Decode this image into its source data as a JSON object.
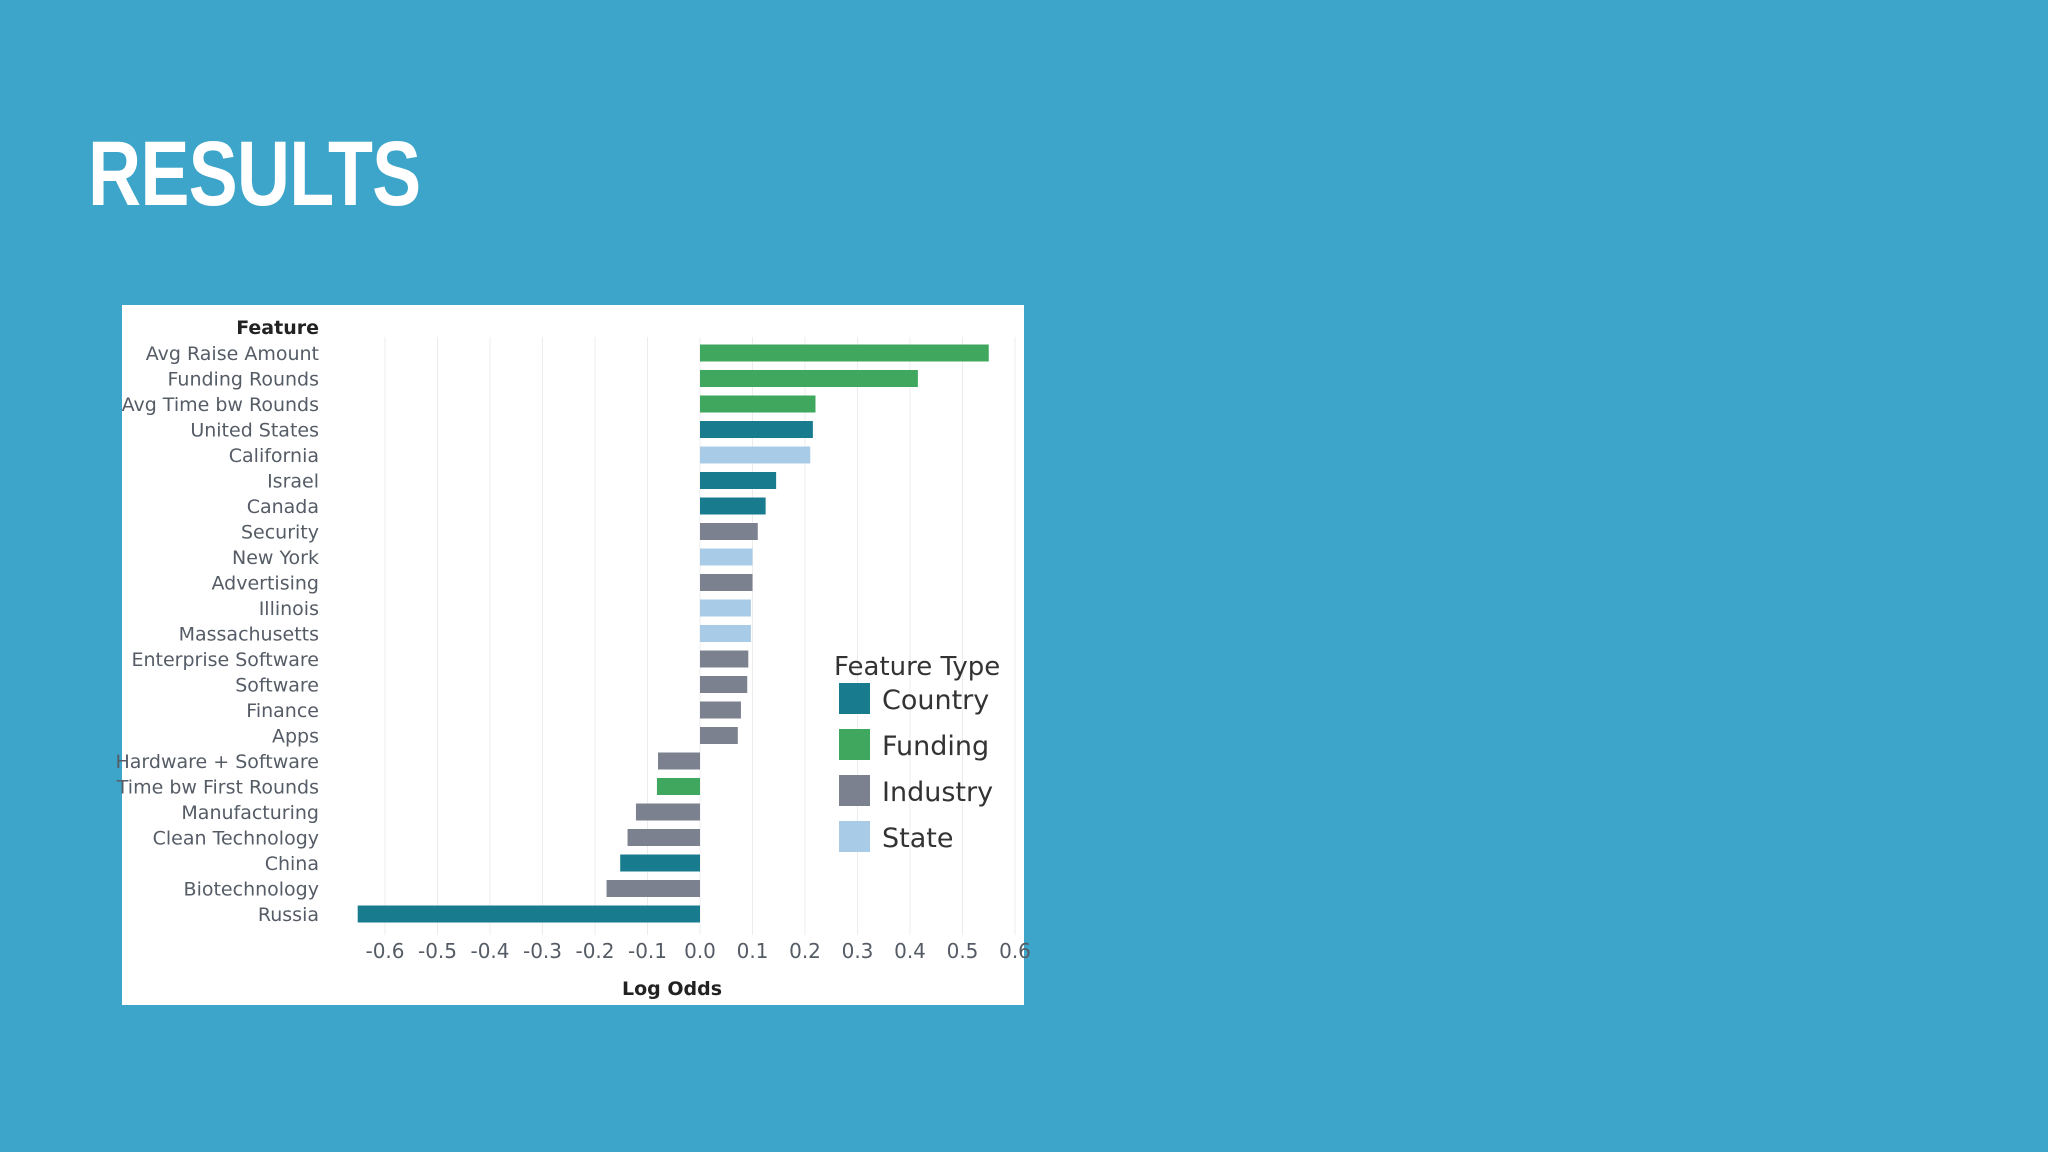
{
  "slide": {
    "title": "RESULTS"
  },
  "chart_data": {
    "type": "bar",
    "orientation": "horizontal",
    "row_header": "Feature",
    "xlabel": "Log Odds",
    "xlim": [
      -0.65,
      0.6
    ],
    "xticks": [
      -0.6,
      -0.5,
      -0.4,
      -0.3,
      -0.2,
      -0.1,
      0.0,
      0.1,
      0.2,
      0.3,
      0.4,
      0.5,
      0.6
    ],
    "xtick_labels": [
      "-0.6",
      "-0.5",
      "-0.4",
      "-0.3",
      "-0.2",
      "-0.1",
      "0.0",
      "0.1",
      "0.2",
      "0.3",
      "0.4",
      "0.5",
      "0.6"
    ],
    "grid": true,
    "categories": [
      {
        "label": "Avg Raise Amount",
        "value": 0.55,
        "type": "Funding"
      },
      {
        "label": "Funding Rounds",
        "value": 0.415,
        "type": "Funding"
      },
      {
        "label": "Avg Time bw Rounds",
        "value": 0.22,
        "type": "Funding"
      },
      {
        "label": "United States",
        "value": 0.215,
        "type": "Country"
      },
      {
        "label": "California",
        "value": 0.21,
        "type": "State"
      },
      {
        "label": "Israel",
        "value": 0.145,
        "type": "Country"
      },
      {
        "label": "Canada",
        "value": 0.125,
        "type": "Country"
      },
      {
        "label": "Security",
        "value": 0.11,
        "type": "Industry"
      },
      {
        "label": "New York",
        "value": 0.1,
        "type": "State"
      },
      {
        "label": "Advertising",
        "value": 0.1,
        "type": "Industry"
      },
      {
        "label": "Illinois",
        "value": 0.097,
        "type": "State"
      },
      {
        "label": "Massachusetts",
        "value": 0.097,
        "type": "State"
      },
      {
        "label": "Enterprise Software",
        "value": 0.092,
        "type": "Industry"
      },
      {
        "label": "Software",
        "value": 0.09,
        "type": "Industry"
      },
      {
        "label": "Finance",
        "value": 0.078,
        "type": "Industry"
      },
      {
        "label": "Apps",
        "value": 0.072,
        "type": "Industry"
      },
      {
        "label": "Hardware + Software",
        "value": -0.08,
        "type": "Industry"
      },
      {
        "label": "Time bw First Rounds",
        "value": -0.082,
        "type": "Funding"
      },
      {
        "label": "Manufacturing",
        "value": -0.122,
        "type": "Industry"
      },
      {
        "label": "Clean Technology",
        "value": -0.138,
        "type": "Industry"
      },
      {
        "label": "China",
        "value": -0.152,
        "type": "Country"
      },
      {
        "label": "Biotechnology",
        "value": -0.178,
        "type": "Industry"
      },
      {
        "label": "Russia",
        "value": -0.652,
        "type": "Country"
      }
    ],
    "legend": {
      "title": "Feature Type",
      "position": "right",
      "entries": [
        {
          "label": "Country",
          "color": "#187b8e"
        },
        {
          "label": "Funding",
          "color": "#3fa75e"
        },
        {
          "label": "Industry",
          "color": "#7c8190"
        },
        {
          "label": "State",
          "color": "#a8cce8"
        }
      ]
    }
  }
}
